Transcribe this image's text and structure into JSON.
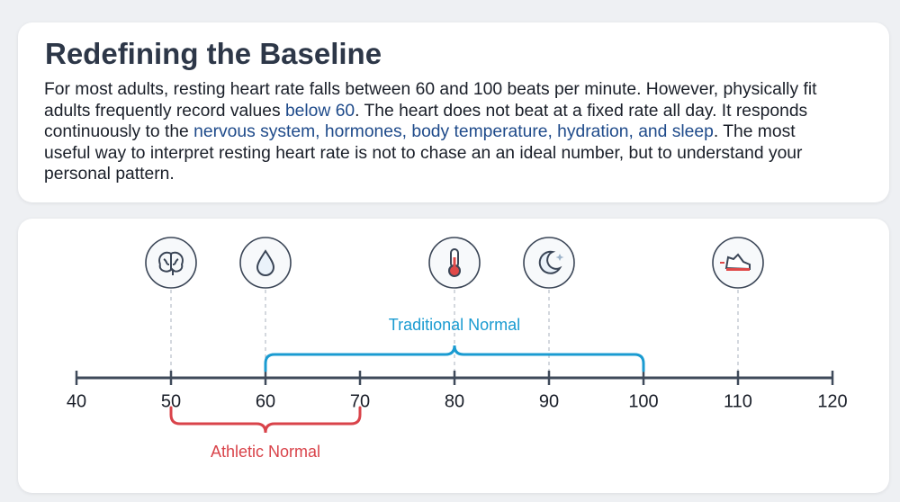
{
  "header": {
    "title": "Redefining the Baseline"
  },
  "paragraph": [
    {
      "text": "For most adults, resting heart rate falls between 60 and 100 beats per minute. However, physically fit adults frequently record values ",
      "highlight": false
    },
    {
      "text": "below 60",
      "highlight": true
    },
    {
      "text": ". The heart does not beat at a fixed rate all day. It responds continuously to the ",
      "highlight": false
    },
    {
      "text": "nervous system, hormones, body temperature, hydration, and sleep",
      "highlight": true
    },
    {
      "text": ". The most useful way to interpret resting heart rate is not to chase an an ideal number, but to understand your personal pattern.",
      "highlight": false
    }
  ],
  "scale": {
    "xlim": [
      40,
      120
    ],
    "xticks": [
      40,
      50,
      60,
      70,
      80,
      90,
      100,
      110,
      120
    ],
    "markers": [
      50,
      60,
      80,
      90,
      110
    ],
    "ranges": [
      {
        "label": "Traditional Normal",
        "start": 60,
        "end": 100,
        "color": "#1a9bd1",
        "side": "above"
      },
      {
        "label": "Athletic Normal",
        "start": 50,
        "end": 70,
        "color": "#d9434a",
        "side": "below"
      }
    ]
  }
}
